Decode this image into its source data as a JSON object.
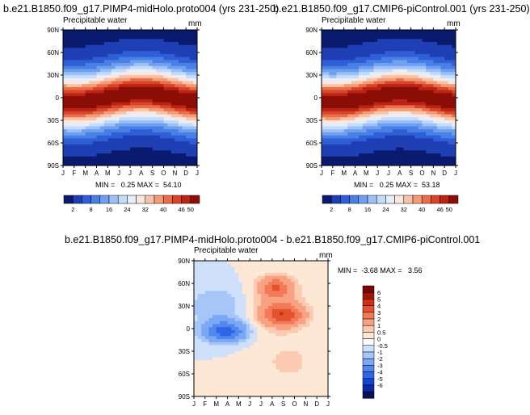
{
  "chart_data": [
    {
      "type": "heatmap",
      "title": "b.e21.B1850.f09_g17.PIMP4-midHolo.proto004 (yrs 231-250)",
      "subtitle": "Precipitable water",
      "units": "mm",
      "x_ticks": [
        "J",
        "F",
        "M",
        "A",
        "M",
        "J",
        "J",
        "A",
        "S",
        "O",
        "N",
        "D",
        "J"
      ],
      "y_ticks": [
        "90N",
        "60N",
        "30N",
        "0",
        "30S",
        "60S",
        "90S"
      ],
      "ylim": [
        -90,
        90
      ],
      "stats": "MIN =   0.25 MAX =  54.10",
      "levels": [
        "2",
        "8",
        "16",
        "24",
        "32",
        "40",
        "46",
        "50"
      ]
    },
    {
      "type": "heatmap",
      "title": "b.e21.B1850.f09_g17.CMIP6-piControl.001 (yrs 231-250)",
      "subtitle": "Precipitable water",
      "units": "mm",
      "x_ticks": [
        "J",
        "F",
        "M",
        "A",
        "M",
        "J",
        "J",
        "A",
        "S",
        "O",
        "N",
        "D",
        "J"
      ],
      "y_ticks": [
        "90N",
        "60N",
        "30N",
        "0",
        "30S",
        "60S",
        "90S"
      ],
      "ylim": [
        -90,
        90
      ],
      "stats": "MIN =   0.25 MAX =  53.18",
      "levels": [
        "2",
        "8",
        "16",
        "24",
        "32",
        "40",
        "46",
        "50"
      ]
    },
    {
      "type": "heatmap",
      "title": "b.e21.B1850.f09_g17.PIMP4-midHolo.proto004 - b.e21.B1850.f09_g17.CMIP6-piControl.001",
      "subtitle": "Precipitable water",
      "units": "mm",
      "x_ticks": [
        "J",
        "F",
        "M",
        "A",
        "M",
        "J",
        "J",
        "A",
        "S",
        "O",
        "N",
        "D",
        "J"
      ],
      "y_ticks": [
        "90N",
        "60N",
        "30N",
        "0",
        "30S",
        "60S",
        "90S"
      ],
      "ylim": [
        -90,
        90
      ],
      "stats": "MIN =  -3.68 MAX =   3.56",
      "levels": [
        "6",
        "5",
        "4",
        "3",
        "2",
        "1",
        "0.5",
        "0",
        "-0.5",
        "-1",
        "-2",
        "-3",
        "-4",
        "-5",
        "-6"
      ]
    }
  ],
  "colors": {
    "seq": [
      "#0a1a6e",
      "#1f3fb5",
      "#2f5fd6",
      "#4a80e6",
      "#6fa0f0",
      "#9cc0f7",
      "#c4dcfb",
      "#e6eefc",
      "#fde6dc",
      "#f8c4a8",
      "#f49c78",
      "#ea6e4a",
      "#d8452a",
      "#b92414",
      "#8b0e06"
    ],
    "div": [
      "#08105a",
      "#0a2aa8",
      "#1446d2",
      "#2f66e6",
      "#5288ee",
      "#7aa8f4",
      "#a6c6f8",
      "#cfe0fb",
      "#ffffff",
      "#fde8d6",
      "#fccab0",
      "#f9a283",
      "#f27a58",
      "#e4532f",
      "#cd2f14",
      "#a51308",
      "#7a0403"
    ]
  }
}
